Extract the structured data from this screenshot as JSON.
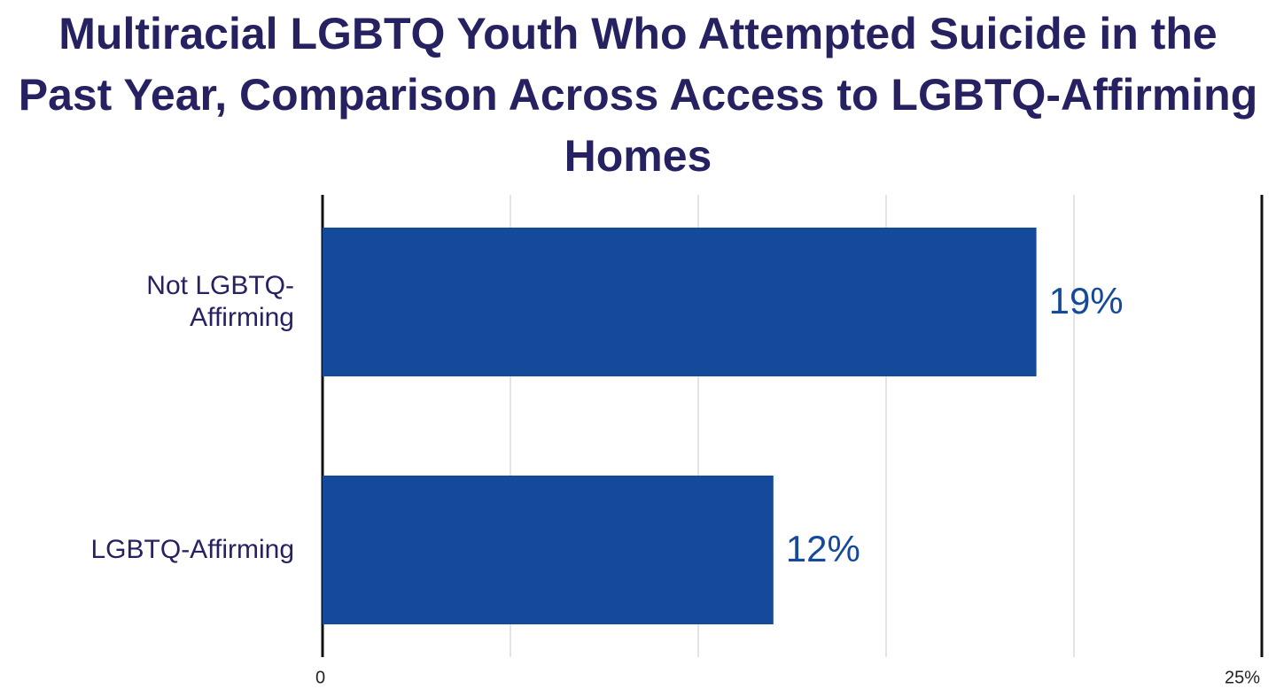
{
  "chart_data": {
    "type": "hbar",
    "title": "Multiracial LGBTQ Youth Who Attempted Suicide in the Past Year, Comparison Across Access to LGBTQ-Affirming Homes",
    "categories": [
      "Not LGBTQ-Affirming",
      "LGBTQ-Affirming"
    ],
    "values": [
      19,
      12
    ],
    "value_labels": [
      "19%",
      "12%"
    ],
    "color": "#154a9a",
    "xlim": [
      0,
      25
    ],
    "xticks": [
      0,
      {
        "value": 5,
        "label": null
      },
      {
        "value": 10,
        "label": null
      },
      {
        "value": 15,
        "label": null
      },
      {
        "value": 20,
        "label": null
      },
      {
        "value": 25,
        "label": "25%"
      }
    ],
    "grid": true
  }
}
